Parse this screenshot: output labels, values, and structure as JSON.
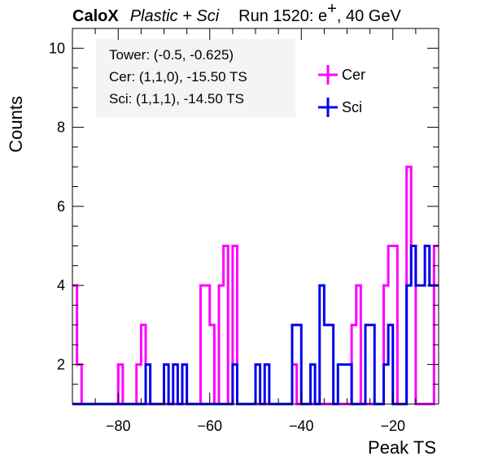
{
  "title": {
    "experiment": "CaloX",
    "detector": "Plastic + Sci",
    "run_label": "Run 1520: e",
    "superscript": "+",
    "energy": ", 40 GeV"
  },
  "info_box": [
    "Tower: (-0.5, -0.625)",
    "Cer: (1,1,0), -15.50 TS",
    "Sci: (1,1,1), -14.50 TS"
  ],
  "chart_data": {
    "type": "histogram",
    "xlabel": "Peak TS",
    "ylabel": "Counts",
    "xlim": [
      -90,
      -10
    ],
    "ylim": [
      1,
      10.5
    ],
    "xticks": [
      -80,
      -60,
      -40,
      -20
    ],
    "yticks": [
      2,
      4,
      6,
      8,
      10
    ],
    "bin_edges_start": -90,
    "bin_width": 1,
    "legend_position": "top-right",
    "series": [
      {
        "name": "Cer",
        "color": "#ff00ff",
        "values": [
          4,
          2,
          0,
          0,
          0,
          0,
          0,
          0,
          0,
          0,
          2,
          0,
          0,
          0,
          2,
          3,
          0,
          0,
          0,
          0,
          0,
          0,
          0,
          0,
          0,
          0,
          0,
          0,
          4,
          4,
          3,
          0,
          4,
          5,
          0,
          5,
          0,
          0,
          0,
          0,
          0,
          0,
          0,
          0,
          0,
          0,
          0,
          0,
          2,
          0,
          0,
          0,
          0,
          0,
          0,
          0,
          0,
          0,
          0,
          0,
          0,
          3,
          4,
          0,
          0,
          0,
          0,
          0,
          4,
          5,
          5,
          0,
          0,
          7,
          5,
          0,
          0,
          0,
          0,
          5
        ]
      },
      {
        "name": "Sci",
        "color": "#0000ee",
        "values": [
          0,
          0,
          0,
          0,
          0,
          0,
          0,
          0,
          0,
          0,
          0,
          0,
          0,
          0,
          0,
          0,
          2,
          0,
          0,
          0,
          2,
          0,
          2,
          0,
          2,
          0,
          0,
          0,
          0,
          0,
          0,
          0,
          0,
          0,
          0,
          2,
          0,
          0,
          0,
          0,
          2,
          0,
          2,
          0,
          0,
          0,
          0,
          0,
          3,
          3,
          0,
          0,
          2,
          0,
          4,
          3,
          3,
          0,
          2,
          2,
          2,
          0,
          0,
          0,
          3,
          3,
          0,
          0,
          2,
          3,
          0,
          0,
          0,
          4,
          5,
          4,
          4,
          5,
          4,
          4
        ]
      }
    ]
  }
}
